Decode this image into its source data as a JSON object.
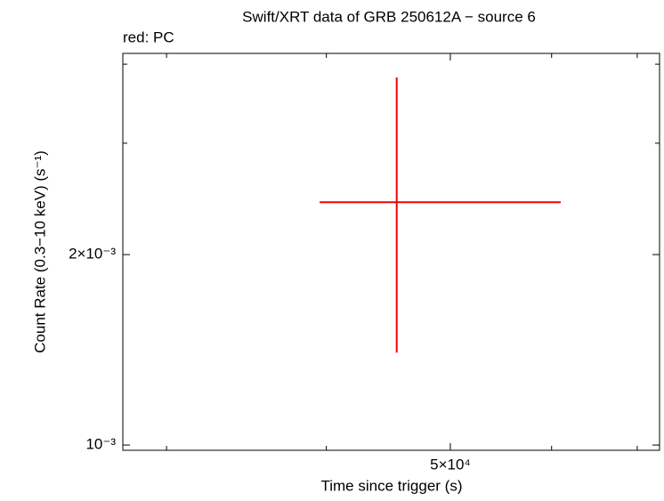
{
  "chart_data": {
    "type": "errorbar",
    "title": "Swift/XRT data of GRB 250612A − source 6",
    "subtitle": "red: PC",
    "xlabel": "Time since trigger (s)",
    "ylabel": "Count Rate (0.3−10 keV) (s⁻¹)",
    "xscale": "log",
    "yscale": "log",
    "xlim": [
      27730,
      72870
    ],
    "ylim": [
      0.000981,
      0.00416
    ],
    "xticks": [
      {
        "value": 50000,
        "label": "5×10⁴"
      }
    ],
    "xticks_minor": [
      30000,
      40000,
      60000,
      70000
    ],
    "yticks": [
      {
        "value": 0.001,
        "label": "10⁻³"
      },
      {
        "value": 0.002,
        "label": "2×10⁻³"
      }
    ],
    "yticks_minor": [
      0.003,
      0.004
    ],
    "series": [
      {
        "color": "#ee0000",
        "x": [
          45400
        ],
        "xerr_minus": [
          5880
        ],
        "xerr_plus": [
          15600
        ],
        "y": [
          0.00242
        ],
        "yerr_minus": [
          0.00102
        ],
        "yerr_plus": [
          0.00139
        ]
      }
    ]
  }
}
